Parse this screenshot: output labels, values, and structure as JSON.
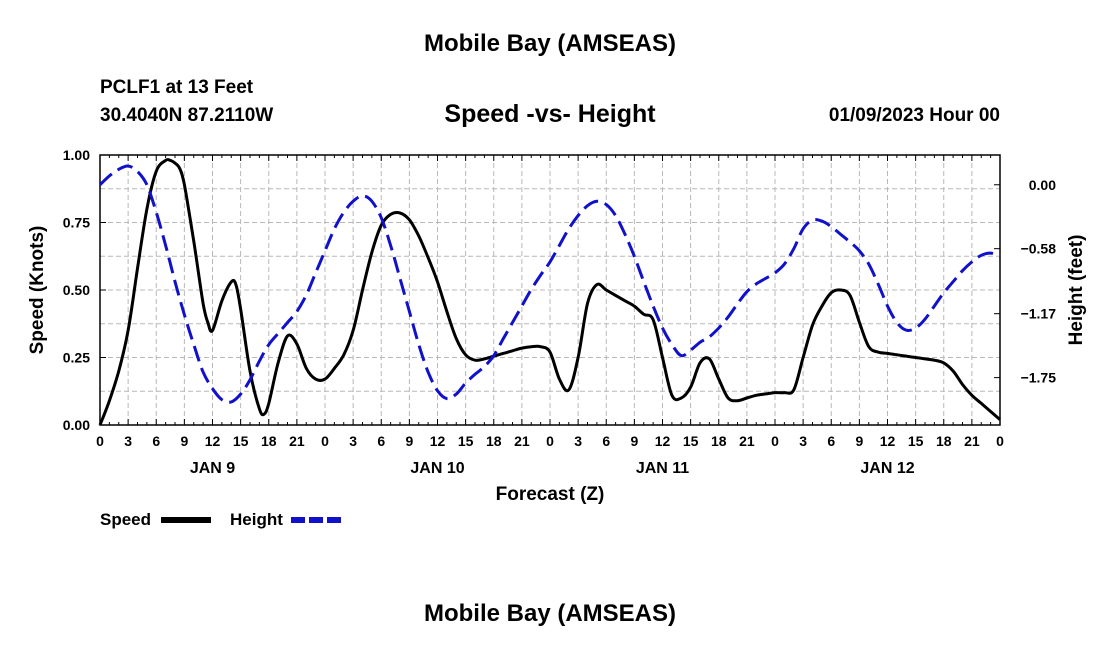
{
  "header": {
    "title": "Mobile Bay (AMSEAS)",
    "station": "PCLF1 at 13 Feet",
    "coords": "30.4040N  87.2110W",
    "chart_title": "Speed -vs- Height",
    "date": "01/09/2023 Hour 00",
    "bottom_title": "Mobile Bay (AMSEAS)"
  },
  "legend": {
    "speed_label": "Speed",
    "height_label": "Height"
  },
  "colors": {
    "speed": "#000000",
    "height": "#1111cc",
    "grid": "#b8b8b8"
  },
  "chart_data": {
    "type": "line",
    "title": "Speed -vs- Height",
    "xlabel": "Forecast (Z)",
    "ylabel": "Speed (Knots)",
    "y2label": "Height (feet)",
    "xlim": [
      0,
      96
    ],
    "ylim": [
      0,
      1.0
    ],
    "y2lim": [
      -2.18,
      0.27
    ],
    "x_ticks": [
      0,
      3,
      6,
      9,
      12,
      15,
      18,
      21,
      24,
      27,
      30,
      33,
      36,
      39,
      42,
      45,
      48,
      51,
      54,
      57,
      60,
      63,
      66,
      69,
      72,
      75,
      78,
      81,
      84,
      87,
      90,
      93,
      96
    ],
    "x_tick_labels": [
      "0",
      "3",
      "6",
      "9",
      "12",
      "15",
      "18",
      "21",
      "0",
      "3",
      "6",
      "9",
      "12",
      "15",
      "18",
      "21",
      "0",
      "3",
      "6",
      "9",
      "12",
      "15",
      "18",
      "21",
      "0",
      "3",
      "6",
      "9",
      "12",
      "15",
      "18",
      "21",
      "0"
    ],
    "day_labels": [
      {
        "x": 12,
        "label": "JAN 9"
      },
      {
        "x": 36,
        "label": "JAN 10"
      },
      {
        "x": 60,
        "label": "JAN 11"
      },
      {
        "x": 84,
        "label": "JAN 12"
      }
    ],
    "y_ticks": [
      0.0,
      0.25,
      0.5,
      0.75,
      1.0
    ],
    "y_tick_labels": [
      "0.00",
      "0.25",
      "0.50",
      "0.75",
      "1.00"
    ],
    "y2_ticks": [
      0.0,
      -0.58,
      -1.17,
      -1.75
    ],
    "y2_tick_labels": [
      "0.00",
      "−0.58",
      "−1.17",
      "−1.75"
    ],
    "grid": true,
    "series": [
      {
        "name": "Speed",
        "axis": "left",
        "style": "solid",
        "x": [
          0,
          1,
          2,
          3,
          4,
          5,
          6,
          7,
          7.5,
          8,
          8.5,
          9,
          10,
          11,
          11.5,
          12,
          13,
          14,
          14.5,
          15,
          16,
          17,
          17.5,
          18,
          19,
          20,
          21,
          22,
          23,
          24,
          25,
          26,
          27,
          28,
          29,
          30,
          31,
          32,
          33,
          34,
          35,
          36,
          37,
          38,
          39,
          40,
          41,
          42,
          43,
          44,
          45,
          46,
          47,
          48,
          49,
          50,
          51,
          52,
          53,
          54,
          55,
          56,
          57,
          58,
          59,
          60,
          61,
          62,
          63,
          64,
          65,
          66,
          67,
          68,
          69,
          70,
          71,
          72,
          73,
          74,
          75,
          76,
          77,
          78,
          79,
          80,
          81,
          82,
          83,
          84,
          85,
          86,
          87,
          88,
          89,
          90,
          91,
          92,
          93,
          94,
          95,
          96
        ],
        "values": [
          0.0,
          0.09,
          0.2,
          0.35,
          0.58,
          0.8,
          0.94,
          0.98,
          0.98,
          0.97,
          0.95,
          0.89,
          0.68,
          0.45,
          0.38,
          0.35,
          0.46,
          0.53,
          0.52,
          0.43,
          0.2,
          0.06,
          0.04,
          0.08,
          0.23,
          0.33,
          0.3,
          0.21,
          0.17,
          0.17,
          0.21,
          0.26,
          0.35,
          0.5,
          0.64,
          0.74,
          0.78,
          0.785,
          0.76,
          0.7,
          0.62,
          0.53,
          0.42,
          0.32,
          0.26,
          0.24,
          0.245,
          0.255,
          0.265,
          0.275,
          0.285,
          0.29,
          0.29,
          0.27,
          0.17,
          0.13,
          0.25,
          0.45,
          0.52,
          0.5,
          0.48,
          0.46,
          0.44,
          0.41,
          0.39,
          0.25,
          0.11,
          0.1,
          0.14,
          0.23,
          0.245,
          0.17,
          0.1,
          0.09,
          0.1,
          0.11,
          0.115,
          0.12,
          0.12,
          0.13,
          0.25,
          0.37,
          0.44,
          0.49,
          0.5,
          0.48,
          0.38,
          0.29,
          0.27,
          0.265,
          0.26,
          0.255,
          0.25,
          0.245,
          0.24,
          0.23,
          0.2,
          0.15,
          0.11,
          0.08,
          0.05,
          0.02
        ]
      },
      {
        "name": "Height",
        "axis": "right",
        "style": "dashed",
        "x": [
          0,
          1,
          2,
          3,
          4,
          5,
          6,
          7,
          8,
          9,
          10,
          11,
          12,
          13,
          14,
          15,
          16,
          17,
          18,
          19,
          20,
          21,
          22,
          23,
          24,
          25,
          26,
          27,
          28,
          29,
          30,
          31,
          32,
          33,
          34,
          35,
          36,
          37,
          38,
          39,
          40,
          41,
          42,
          43,
          44,
          45,
          46,
          47,
          48,
          49,
          50,
          51,
          52,
          53,
          54,
          55,
          56,
          57,
          58,
          59,
          60,
          61,
          62,
          63,
          64,
          65,
          66,
          67,
          68,
          69,
          70,
          71,
          72,
          73,
          74,
          75,
          76,
          77,
          78,
          79,
          80,
          81,
          82,
          83,
          84,
          85,
          86,
          87,
          88,
          89,
          90,
          91,
          92,
          93,
          94,
          95,
          96
        ],
        "values": [
          0.0,
          0.08,
          0.14,
          0.17,
          0.12,
          0.0,
          -0.25,
          -0.55,
          -0.88,
          -1.18,
          -1.45,
          -1.7,
          -1.85,
          -1.95,
          -1.97,
          -1.9,
          -1.77,
          -1.6,
          -1.45,
          -1.35,
          -1.25,
          -1.15,
          -1.0,
          -0.8,
          -0.6,
          -0.4,
          -0.25,
          -0.15,
          -0.1,
          -0.15,
          -0.3,
          -0.55,
          -0.85,
          -1.15,
          -1.45,
          -1.7,
          -1.87,
          -1.94,
          -1.9,
          -1.8,
          -1.72,
          -1.65,
          -1.55,
          -1.4,
          -1.25,
          -1.1,
          -0.95,
          -0.82,
          -0.7,
          -0.55,
          -0.4,
          -0.28,
          -0.19,
          -0.15,
          -0.18,
          -0.28,
          -0.45,
          -0.65,
          -0.88,
          -1.1,
          -1.3,
          -1.45,
          -1.55,
          -1.5,
          -1.43,
          -1.38,
          -1.3,
          -1.2,
          -1.08,
          -0.97,
          -0.9,
          -0.85,
          -0.8,
          -0.72,
          -0.58,
          -0.4,
          -0.32,
          -0.33,
          -0.38,
          -0.45,
          -0.52,
          -0.6,
          -0.72,
          -0.9,
          -1.1,
          -1.25,
          -1.32,
          -1.3,
          -1.22,
          -1.1,
          -0.98,
          -0.88,
          -0.78,
          -0.7,
          -0.64,
          -0.62,
          -0.65
        ]
      }
    ]
  }
}
